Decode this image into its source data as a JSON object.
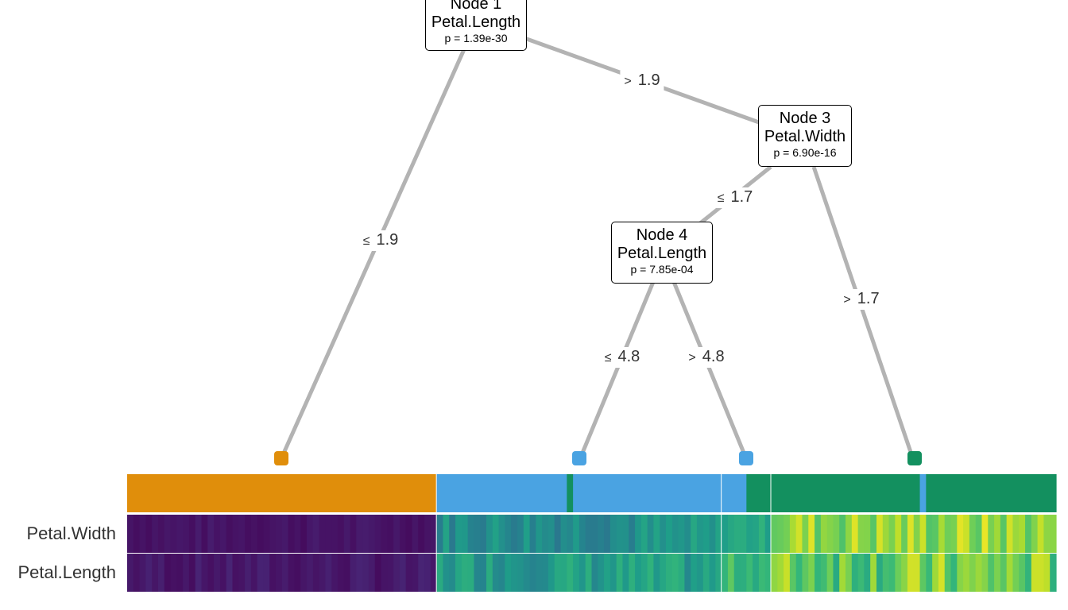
{
  "tree": {
    "nodes": [
      {
        "id": "node1",
        "title": "Node 1",
        "variable": "Petal.Length",
        "pvalue": "p = 1.39e-30"
      },
      {
        "id": "node3",
        "title": "Node 3",
        "variable": "Petal.Width",
        "pvalue": "p = 6.90e-16"
      },
      {
        "id": "node4",
        "title": "Node 4",
        "variable": "Petal.Length",
        "pvalue": "p = 7.85e-04"
      }
    ],
    "edges": [
      {
        "id": "e1",
        "op": "≤",
        "value": "1.9"
      },
      {
        "id": "e2",
        "op": ">",
        "value": "1.9"
      },
      {
        "id": "e3",
        "op": "≤",
        "value": "1.7"
      },
      {
        "id": "e4",
        "op": ">",
        "value": "1.7"
      },
      {
        "id": "e5",
        "op": "≤",
        "value": "4.8"
      },
      {
        "id": "e6",
        "op": ">",
        "value": "4.8"
      }
    ],
    "leaves": [
      {
        "id": "leaf2",
        "color": "#E08E0B"
      },
      {
        "id": "leaf5",
        "color": "#4AA3E2"
      },
      {
        "id": "leaf6",
        "color": "#4AA3E2"
      },
      {
        "id": "leaf7",
        "color": "#13905F"
      }
    ]
  },
  "heatmap": {
    "row_labels": [
      "Petal.Width",
      "Petal.Length"
    ],
    "colors": {
      "setosa": "#E08E0B",
      "versicolor": "#4AA3E2",
      "virginica": "#13905F"
    },
    "groups": [
      {
        "leaf": "leaf2",
        "n": 50,
        "class_runs": [
          [
            "setosa",
            50
          ]
        ]
      },
      {
        "leaf": "leaf5",
        "n": 46,
        "class_runs": [
          [
            "versicolor",
            21
          ],
          [
            "virginica",
            1
          ],
          [
            "versicolor",
            24
          ]
        ]
      },
      {
        "leaf": "leaf6",
        "n": 8,
        "class_runs": [
          [
            "versicolor",
            4
          ],
          [
            "virginica",
            4
          ]
        ]
      },
      {
        "leaf": "leaf7",
        "n": 46,
        "class_runs": [
          [
            "virginica",
            24
          ],
          [
            "versicolor",
            1
          ],
          [
            "virginica",
            21
          ]
        ]
      }
    ]
  }
}
